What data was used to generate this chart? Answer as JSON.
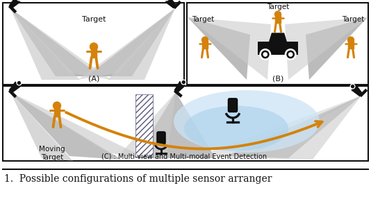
{
  "fig_width": 5.34,
  "fig_height": 2.84,
  "dpi": 100,
  "bg_color": "#ffffff",
  "gray_fill": "#b0b0b0",
  "light_gray": "#cccccc",
  "blue_fill": "#a8d0ec",
  "light_blue": "#cce4f5",
  "orange_color": "#d4820a",
  "dark_color": "#111111",
  "caption_text": "(C) : Multi-view and Multi-modal Event Detection",
  "fig_caption": "1.  Possible configurations of multiple sensor arranger",
  "label_A": "(A)",
  "label_B": "(B)",
  "moving_target": "Moving\nTarget",
  "target_text": "Target"
}
